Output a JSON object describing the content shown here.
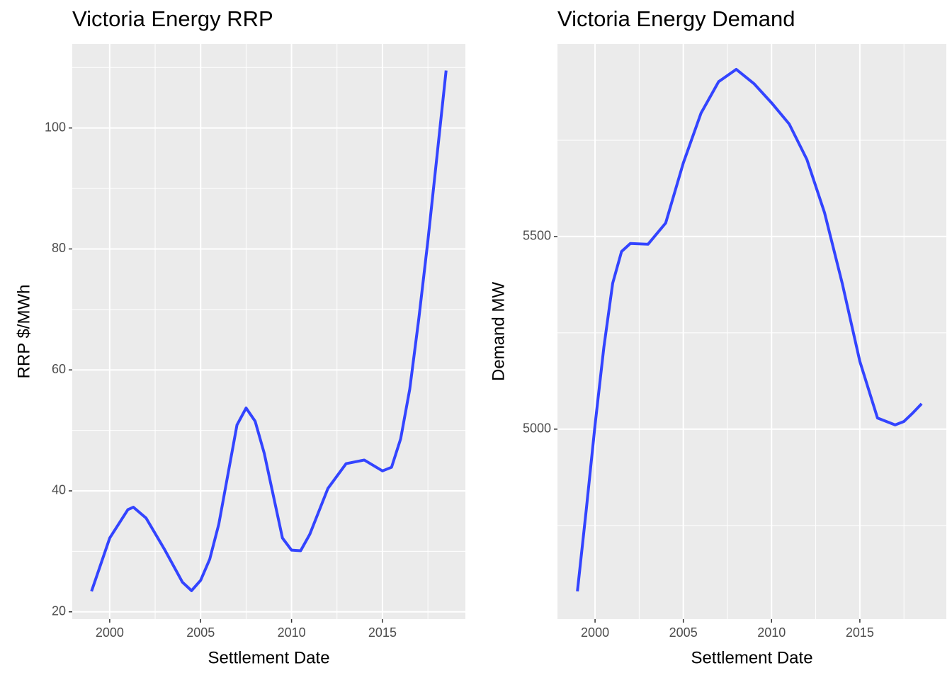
{
  "chart_data": [
    {
      "type": "line",
      "title": "Victoria Energy RRP",
      "x_label": "Settlement Date",
      "y_label": "RRP $/MWh",
      "color": "#3344ff",
      "grid": true,
      "x": [
        1999,
        2000,
        2001,
        2001.3,
        2002,
        2003,
        2004,
        2004.5,
        2005,
        2005.5,
        2006,
        2006.5,
        2007,
        2007.5,
        2008,
        2008.5,
        2009,
        2009.5,
        2010,
        2010.5,
        2011,
        2012,
        2013,
        2014,
        2015,
        2015.5,
        2016,
        2016.5,
        2017,
        2017.5,
        2018,
        2018.5
      ],
      "values": [
        23.4,
        32.2,
        36.9,
        37.3,
        35.5,
        30.4,
        24.9,
        23.5,
        25.2,
        28.7,
        34.5,
        42.7,
        50.9,
        53.7,
        51.5,
        46.2,
        39.2,
        32.2,
        30.2,
        30.1,
        32.8,
        40.4,
        44.5,
        45.1,
        43.3,
        43.9,
        48.6,
        56.8,
        68.5,
        81.4,
        95.4,
        109.5
      ],
      "xlim": [
        1997.94,
        2019.56
      ],
      "xticks": [
        2000,
        2005,
        2010,
        2015
      ],
      "ylim": [
        18.8,
        113.9
      ],
      "yticks": [
        20,
        40,
        60,
        80,
        100
      ]
    },
    {
      "type": "line",
      "title": "Victoria Energy Demand",
      "x_label": "Settlement Date",
      "y_label": "Demand MW",
      "color": "#3344ff",
      "grid": true,
      "x": [
        1999,
        1999.5,
        2000,
        2000.5,
        2001,
        2001.5,
        2002,
        2003,
        2004,
        2005,
        2006,
        2007,
        2008,
        2009,
        2010,
        2011,
        2012,
        2013,
        2014,
        2015,
        2016,
        2017,
        2017.5,
        2018,
        2018.5
      ],
      "values": [
        4579,
        4790,
        5011,
        5213,
        5379,
        5461,
        5482,
        5480,
        5535,
        5691,
        5820,
        5902,
        5934,
        5897,
        5847,
        5792,
        5700,
        5562,
        5379,
        5176,
        5029,
        5011,
        5020,
        5042,
        5066
      ],
      "xlim": [
        1997.87,
        2019.9
      ],
      "xticks": [
        2000,
        2005,
        2010,
        2015
      ],
      "ylim": [
        4507,
        6000
      ],
      "yticks": [
        5000,
        5500
      ]
    }
  ]
}
